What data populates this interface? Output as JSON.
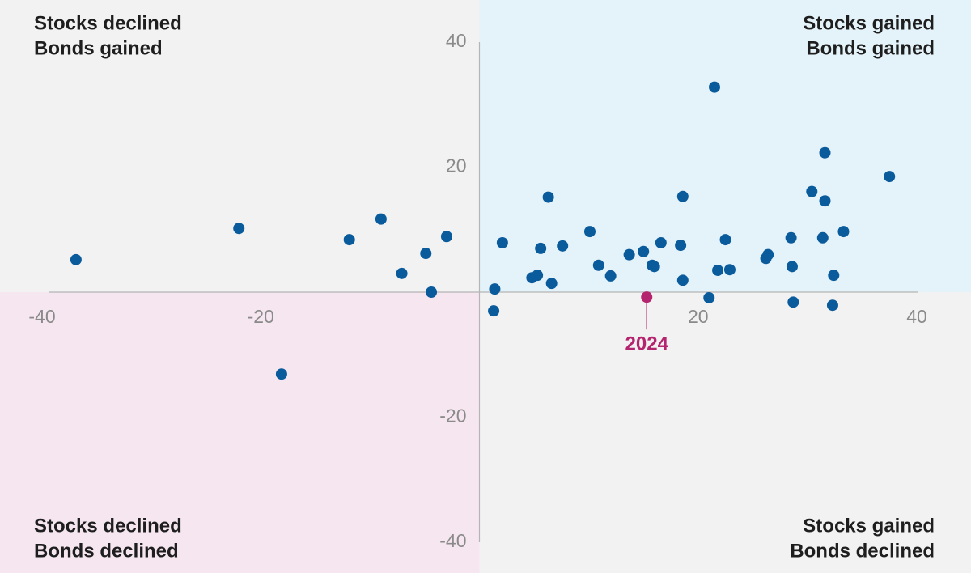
{
  "chart_data": {
    "type": "scatter",
    "xlim": [
      -40,
      40
    ],
    "ylim": [
      -40,
      40
    ],
    "xticks": [
      -40,
      -20,
      20,
      40
    ],
    "yticks": [
      -40,
      -20,
      20,
      40
    ],
    "point_color": "#0a5b9c",
    "x": [
      -36.9,
      -22.0,
      -18.1,
      -11.9,
      -9.0,
      -7.1,
      -4.9,
      -4.4,
      -3.0,
      1.4,
      1.3,
      2.1,
      4.8,
      5.3,
      5.6,
      6.3,
      6.6,
      7.6,
      10.1,
      10.9,
      12.0,
      13.7,
      15.0,
      15.8,
      16.0,
      16.6,
      18.4,
      18.6,
      18.6,
      21.0,
      21.5,
      21.8,
      22.5,
      22.9,
      26.2,
      26.4,
      28.5,
      28.6,
      28.7,
      30.4,
      31.4,
      31.6,
      31.6,
      32.3,
      32.4,
      33.3,
      37.5
    ],
    "y": [
      5.2,
      10.2,
      -13.1,
      8.4,
      11.7,
      3.0,
      6.2,
      0.0,
      8.9,
      0.5,
      -3.0,
      7.9,
      2.3,
      2.7,
      7.0,
      15.2,
      1.4,
      7.4,
      9.7,
      4.3,
      2.6,
      6.0,
      6.5,
      4.3,
      4.1,
      7.9,
      7.5,
      15.3,
      1.9,
      -0.9,
      32.8,
      3.5,
      8.4,
      3.6,
      5.4,
      6.0,
      8.7,
      4.1,
      -1.6,
      16.1,
      8.7,
      14.6,
      22.3,
      -2.1,
      2.7,
      9.7,
      18.5
    ],
    "highlight": {
      "label": "2024",
      "x": 15.3,
      "y": -0.8,
      "color": "#b5246e"
    },
    "quadrants": [
      {
        "corner": "top-left",
        "lines": [
          "Stocks declined",
          "Bonds gained"
        ],
        "color": "#f2f2f2"
      },
      {
        "corner": "top-right",
        "lines": [
          "Stocks gained",
          "Bonds gained"
        ],
        "color": "#e4f2f9"
      },
      {
        "corner": "bottom-left",
        "lines": [
          "Stocks declined",
          "Bonds declined"
        ],
        "color": "#f6e6f0"
      },
      {
        "corner": "bottom-right",
        "lines": [
          "Stocks gained",
          "Bonds declined"
        ],
        "color": "#f2f2f2"
      }
    ]
  }
}
